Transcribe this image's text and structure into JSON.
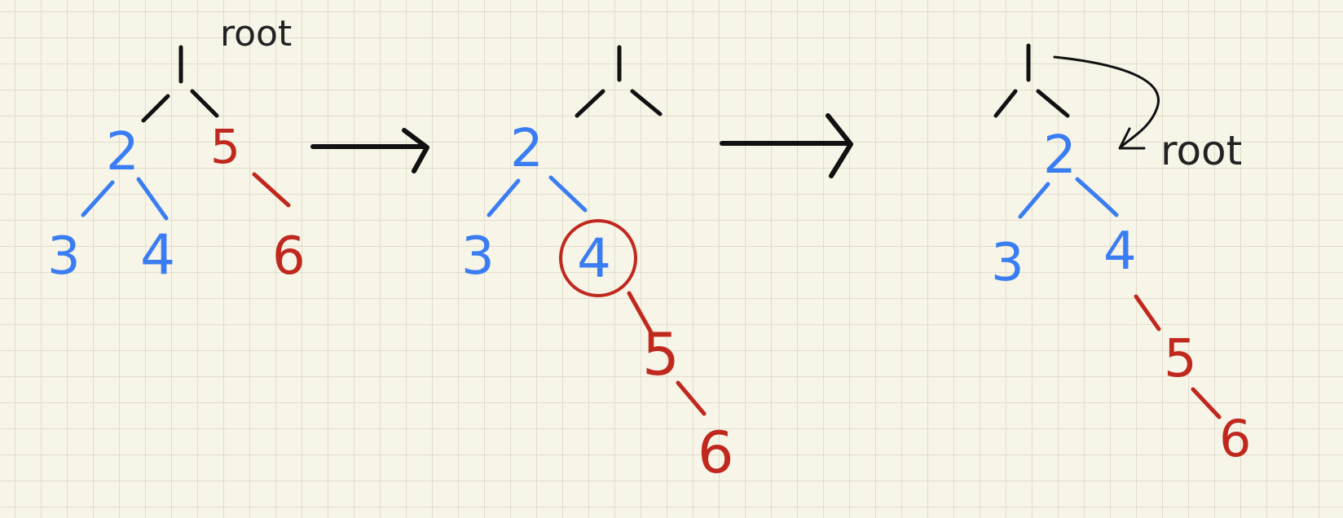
{
  "colors": {
    "paper": "#f7f4e8",
    "grid": "#e2ddcc",
    "left_subtree": "#3a7df2",
    "right_subtree": "#c0281e",
    "ink": "#111111"
  },
  "panels": [
    {
      "annotation": "root",
      "nodes": {
        "root_child": "2",
        "right": "5",
        "left_left": "3",
        "left_right": "4",
        "right_right": "6"
      }
    },
    {
      "nodes": {
        "root_child": "2",
        "left_left": "3",
        "left_right": "4",
        "moved_right": "5",
        "moved_right_right": "6"
      },
      "highlight": "4"
    },
    {
      "annotation": "root",
      "nodes": {
        "root_child": "2",
        "left_left": "3",
        "left_right": "4",
        "moved_right": "5",
        "moved_right_right": "6"
      }
    }
  ]
}
